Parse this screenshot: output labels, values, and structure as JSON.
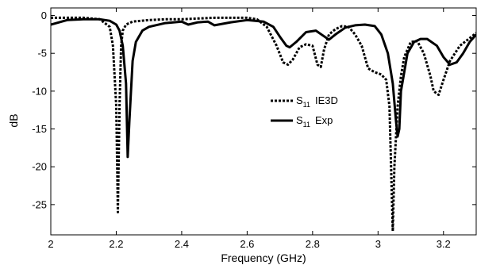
{
  "chart_data": {
    "type": "line",
    "xlabel": "Frequency (GHz)",
    "ylabel": "dB",
    "xlim": [
      2.0,
      3.3
    ],
    "ylim": [
      -29,
      1
    ],
    "grid": false,
    "legend_position": "center-right",
    "x_ticks": [
      2,
      2.2,
      2.4,
      2.6,
      2.8,
      3,
      3.2
    ],
    "x_tick_labels": [
      "2",
      "2.2",
      "2.4",
      "2.6",
      "2.8",
      "3",
      "3.2"
    ],
    "y_ticks": [
      0,
      -5,
      -10,
      -15,
      -20,
      -25
    ],
    "y_tick_labels": [
      "0",
      "-5",
      "-10",
      "-15",
      "-20",
      "-25"
    ],
    "series": [
      {
        "name_main": "S",
        "name_sub": "11",
        "name_suffix": "IE3D",
        "style": "dotted",
        "color": "#000000",
        "x": [
          2.0,
          2.05,
          2.1,
          2.15,
          2.18,
          2.19,
          2.2,
          2.205,
          2.21,
          2.215,
          2.22,
          2.23,
          2.25,
          2.3,
          2.35,
          2.4,
          2.45,
          2.5,
          2.55,
          2.6,
          2.63,
          2.66,
          2.69,
          2.71,
          2.725,
          2.74,
          2.76,
          2.78,
          2.8,
          2.815,
          2.825,
          2.835,
          2.85,
          2.87,
          2.89,
          2.91,
          2.93,
          2.95,
          2.97,
          2.99,
          3.01,
          3.025,
          3.035,
          3.045,
          3.05,
          3.06,
          3.07,
          3.08,
          3.1,
          3.12,
          3.14,
          3.16,
          3.17,
          3.185,
          3.2,
          3.22,
          3.25,
          3.28,
          3.3
        ],
        "y": [
          -0.3,
          -0.3,
          -0.3,
          -0.5,
          -1.5,
          -4,
          -12,
          -26,
          -12,
          -4,
          -2,
          -1.2,
          -0.8,
          -0.6,
          -0.5,
          -0.5,
          -0.4,
          -0.3,
          -0.3,
          -0.3,
          -0.5,
          -1.5,
          -4,
          -6.2,
          -6.5,
          -5.8,
          -4.2,
          -3.8,
          -4,
          -6.5,
          -6.8,
          -4.5,
          -2.5,
          -1.8,
          -1.4,
          -1.5,
          -2.5,
          -4,
          -7,
          -7.5,
          -7.8,
          -8.5,
          -12,
          -28.5,
          -20,
          -12,
          -8,
          -5.5,
          -3.5,
          -3.4,
          -5,
          -8,
          -10,
          -10.5,
          -8.5,
          -6,
          -4,
          -3,
          -2.3
        ]
      },
      {
        "name_main": "S",
        "name_sub": "11",
        "name_suffix": "Exp",
        "style": "solid",
        "color": "#000000",
        "x": [
          2.0,
          2.05,
          2.1,
          2.15,
          2.18,
          2.2,
          2.21,
          2.22,
          2.23,
          2.235,
          2.24,
          2.25,
          2.26,
          2.28,
          2.3,
          2.35,
          2.4,
          2.42,
          2.45,
          2.48,
          2.5,
          2.55,
          2.6,
          2.65,
          2.68,
          2.7,
          2.72,
          2.73,
          2.75,
          2.78,
          2.81,
          2.83,
          2.85,
          2.87,
          2.9,
          2.93,
          2.96,
          2.99,
          3.01,
          3.03,
          3.045,
          3.055,
          3.06,
          3.065,
          3.07,
          3.09,
          3.11,
          3.13,
          3.15,
          3.18,
          3.2,
          3.22,
          3.24,
          3.26,
          3.28,
          3.3
        ],
        "y": [
          -1.2,
          -0.6,
          -0.5,
          -0.5,
          -0.7,
          -1.2,
          -2,
          -4,
          -9,
          -18.7,
          -14,
          -6,
          -3.5,
          -2,
          -1.5,
          -1,
          -0.8,
          -1.2,
          -0.9,
          -0.8,
          -1.3,
          -0.9,
          -0.6,
          -0.8,
          -1.5,
          -2.8,
          -4,
          -4.2,
          -3.5,
          -2.2,
          -2,
          -2.6,
          -3.2,
          -2.5,
          -1.6,
          -1.3,
          -1.2,
          -1.4,
          -2.5,
          -5,
          -9,
          -14,
          -16,
          -15,
          -10,
          -5,
          -3.5,
          -3.1,
          -3.1,
          -4,
          -5.5,
          -6.5,
          -6.2,
          -5,
          -3.5,
          -2.5
        ]
      }
    ]
  }
}
